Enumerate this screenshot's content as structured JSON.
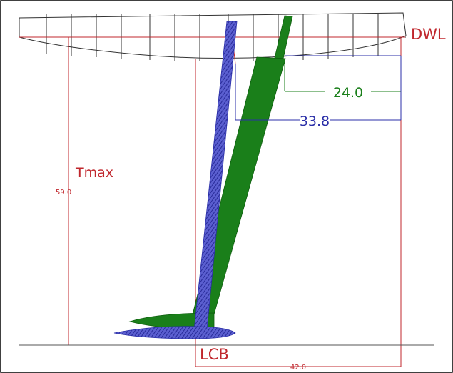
{
  "labels": {
    "dwl": "DWL",
    "dim_green": "24.0",
    "dim_blue": "33.8",
    "tmax": "Tmax",
    "tmax_value": "59.0",
    "lcb": "LCB",
    "lcb_value": "42.0"
  },
  "colors": {
    "red": "#c0272d",
    "green": "#1a7f1a",
    "blue": "#2b2fa8",
    "hull": "#333333"
  }
}
